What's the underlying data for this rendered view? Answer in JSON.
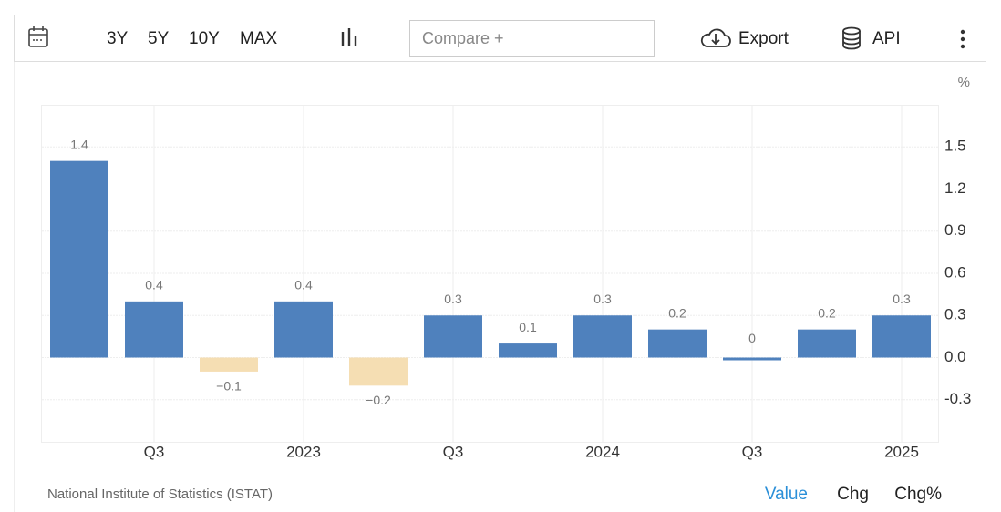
{
  "toolbar": {
    "ranges": [
      "3Y",
      "5Y",
      "10Y",
      "MAX"
    ],
    "compare": "Compare +",
    "export": "Export",
    "api": "API"
  },
  "chart_data": {
    "type": "bar",
    "unit": "%",
    "categories": [
      null,
      "Q3",
      null,
      "2023",
      null,
      "Q3",
      null,
      "2024",
      null,
      "Q3",
      null,
      "2025"
    ],
    "values": [
      1.4,
      0.4,
      -0.1,
      0.4,
      -0.2,
      0.3,
      0.1,
      0.3,
      0.2,
      0,
      0.2,
      0.3
    ],
    "value_labels": [
      "1.4",
      "0.4",
      "−0.1",
      "0.4",
      "−0.2",
      "0.3",
      "0.1",
      "0.3",
      "0.2",
      "0",
      "0.2",
      "0.3"
    ],
    "colors": {
      "positive": "#4f81bd",
      "negative": "#f5deb3"
    },
    "ylim": [
      -0.6,
      1.8
    ],
    "yticks": [
      -0.3,
      {
        "value": 0,
        "label": "0.0"
      },
      0.3,
      0.6,
      0.9,
      1.2,
      1.5
    ],
    "grid": true
  },
  "footer": {
    "source": "National Institute of Statistics (ISTAT)",
    "tabs": [
      "Value",
      "Chg",
      "Chg%"
    ]
  }
}
